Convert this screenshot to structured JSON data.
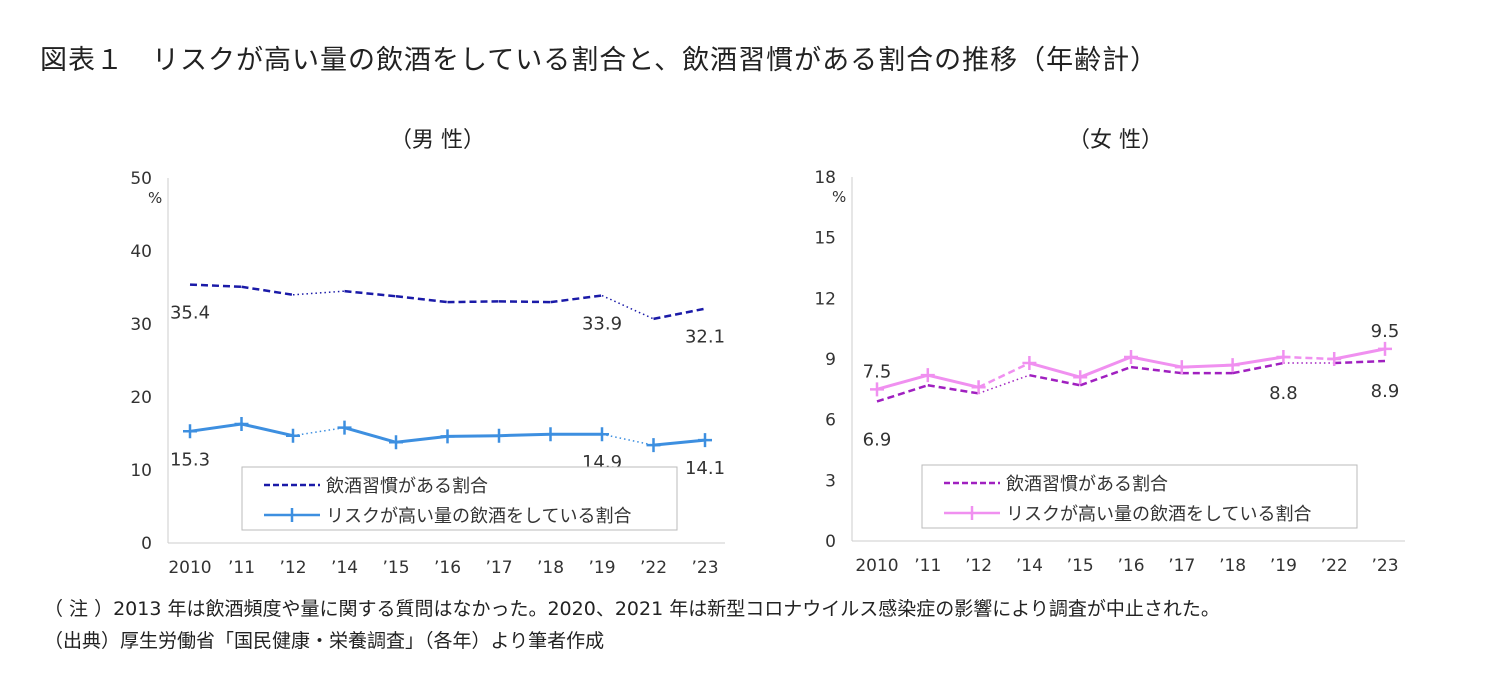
{
  "title": "図表１　リスクが高い量の飲酒をしている割合と、飲酒習慣がある割合の推移（年齢計）",
  "notes": [
    "（ 注 ）2013 年は飲酒頻度や量に関する質問はなかった。2020、2021 年は新型コロナウイルス感染症の影響により調査が中止された。",
    "（出典）厚生労働省「国民健康・栄養調査」（各年）より筆者作成"
  ],
  "chart_data": [
    {
      "type": "line",
      "title": "（男 性）",
      "ylabel": "%",
      "ylim": [
        0,
        50
      ],
      "yticks": [
        0,
        10,
        20,
        30,
        40,
        50
      ],
      "categories": [
        "2010",
        "’11",
        "’12",
        "’14",
        "’15",
        "’16",
        "’17",
        "’18",
        "’19",
        "’22",
        "’23"
      ],
      "legend": "bottom-inside",
      "series": [
        {
          "name": "飲酒習慣がある割合",
          "color": "#1a1aa8",
          "style": "dashed",
          "values": [
            35.4,
            35.1,
            34.0,
            34.5,
            33.8,
            33.0,
            33.1,
            33.0,
            33.9,
            30.7,
            32.1
          ],
          "labels": {
            "0": "35.4",
            "8": "33.9",
            "10": "32.1"
          }
        },
        {
          "name": "リスクが高い量の飲酒をしている割合",
          "color": "#3d8fe0",
          "style": "solid-plus",
          "values": [
            15.3,
            16.3,
            14.7,
            15.8,
            13.8,
            14.6,
            14.7,
            14.9,
            14.9,
            13.4,
            14.1
          ],
          "labels": {
            "0": "15.3",
            "8": "14.9",
            "10": "14.1"
          }
        }
      ]
    },
    {
      "type": "line",
      "title": "（女 性）",
      "ylabel": "%",
      "ylim": [
        0,
        18
      ],
      "yticks": [
        0,
        3,
        6,
        9,
        12,
        15,
        18
      ],
      "categories": [
        "2010",
        "’11",
        "’12",
        "’14",
        "’15",
        "’16",
        "’17",
        "’18",
        "’19",
        "’22",
        "’23"
      ],
      "legend": "bottom-inside",
      "series": [
        {
          "name": "飲酒習慣がある割合",
          "color": "#a020c0",
          "style": "dashed",
          "values": [
            6.9,
            7.7,
            7.3,
            8.2,
            7.7,
            8.6,
            8.3,
            8.3,
            8.8,
            8.8,
            8.9
          ],
          "labels": {
            "0": "6.9",
            "8": "8.8",
            "10": "8.9"
          }
        },
        {
          "name": "リスクが高い量の飲酒をしている割合",
          "color": "#f090f0",
          "style": "solid-plus",
          "values": [
            7.5,
            8.2,
            7.6,
            8.8,
            8.1,
            9.1,
            8.6,
            8.7,
            9.1,
            9.0,
            9.5
          ],
          "labels": {
            "0": "7.5",
            "10": "9.5"
          }
        }
      ]
    }
  ]
}
